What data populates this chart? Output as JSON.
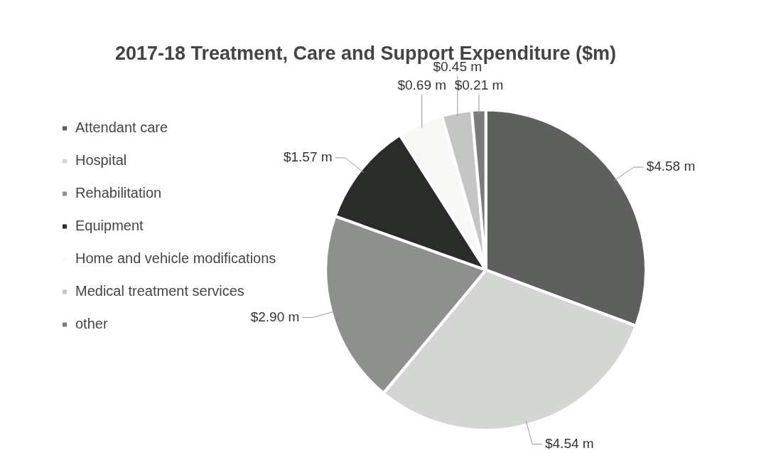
{
  "chart_data": {
    "type": "pie",
    "title": "2017-18 Treatment, Care and Support Expenditure ($m)",
    "categories": [
      "Attendant care",
      "Hospital",
      "Rehabilitation",
      "Equipment",
      "Home and vehicle modifications",
      "Medical treatment services",
      "other"
    ],
    "values": [
      4.58,
      4.54,
      2.9,
      1.57,
      0.69,
      0.45,
      0.21
    ],
    "value_labels": [
      "$4.58 m",
      "$4.54 m",
      "$2.90 m",
      "$1.57 m",
      "$0.69 m",
      "$0.45 m",
      "$0.21 m"
    ],
    "colors": [
      "#5e605e",
      "#d4d6d4",
      "#8e908e",
      "#2a2c2a",
      "#f8f8f6",
      "#c4c6c4",
      "#7a7c7a"
    ],
    "legend": "left"
  }
}
